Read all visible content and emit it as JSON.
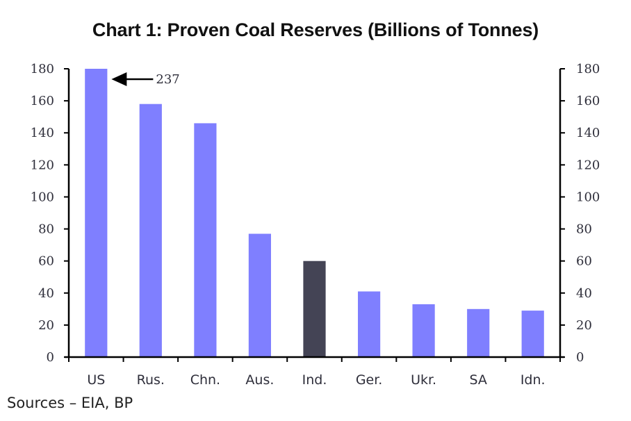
{
  "chart_data": {
    "type": "bar",
    "title": "Chart 1: Proven Coal Reserves (Billions of Tonnes)",
    "xlabel": "",
    "ylabel": "",
    "categories": [
      "US",
      "Rus.",
      "Chn.",
      "Aus.",
      "Ind.",
      "Ger.",
      "Ukr.",
      "SA",
      "Idn."
    ],
    "values": [
      237,
      158,
      146,
      77,
      60,
      41,
      33,
      30,
      29
    ],
    "highlight_category": "Ind.",
    "ylim": [
      0,
      180
    ],
    "yticks": [
      0,
      20,
      40,
      60,
      80,
      100,
      120,
      140,
      160,
      180
    ],
    "secondary_yaxis": true,
    "grid": false,
    "legend": "none",
    "annotations": [
      {
        "category": "US",
        "text": "237",
        "note": "bar truncated at axis max; arrow points to bar top"
      }
    ],
    "colors": {
      "bar": "#7f7fff",
      "highlight": "#444455",
      "axis": "#000000"
    },
    "source": "Sources – EIA, BP"
  }
}
